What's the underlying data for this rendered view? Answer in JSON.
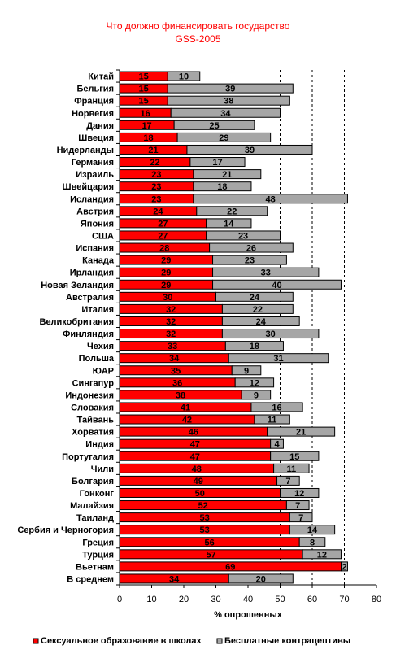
{
  "chart_data": {
    "type": "bar",
    "orientation": "horizontal",
    "stacked": true,
    "title": "Что должно финансировать государство",
    "subtitle": "GSS-2005",
    "xlabel": "% опрошенных",
    "xlim": [
      0,
      80
    ],
    "xticks": [
      "0",
      "10",
      "20",
      "30",
      "40",
      "50",
      "60",
      "70",
      "80"
    ],
    "grid": "vertical dashed lines at 50, 60, 70",
    "legend_position": "bottom",
    "categories": [
      "Китай",
      "Бельгия",
      "Франция",
      "Норвегия",
      "Дания",
      "Швеция",
      "Нидерланды",
      "Германия",
      "Израиль",
      "Швейцария",
      "Исландия",
      "Австрия",
      "Япония",
      "США",
      "Испания",
      "Канада",
      "Ирландия",
      "Новая Зеландия",
      "Австралия",
      "Италия",
      "Великобритания",
      "Финляндия",
      "Чехия",
      "Польша",
      "ЮАР",
      "Сингапур",
      "Индонезия",
      "Словакия",
      "Тайвань",
      "Хорватия",
      "Индия",
      "Португалия",
      "Чили",
      "Болгария",
      "Гонконг",
      "Малайзия",
      "Таиланд",
      "Сербия и Черногория",
      "Греция",
      "Турция",
      "Вьетнам",
      "В среднем"
    ],
    "series": [
      {
        "name": "Сексуальное образование в школах",
        "color": "#ff0000",
        "values": [
          15,
          15,
          15,
          16,
          17,
          18,
          21,
          22,
          23,
          23,
          23,
          24,
          27,
          27,
          28,
          29,
          29,
          29,
          30,
          32,
          32,
          32,
          33,
          34,
          35,
          36,
          38,
          41,
          42,
          46,
          47,
          47,
          48,
          49,
          50,
          52,
          53,
          53,
          56,
          57,
          69,
          34
        ]
      },
      {
        "name": "Бесплатные контрацептивы",
        "color": "#a6a6a6",
        "values": [
          10,
          39,
          38,
          34,
          25,
          29,
          39,
          17,
          21,
          18,
          48,
          22,
          14,
          23,
          26,
          23,
          33,
          40,
          24,
          22,
          24,
          30,
          18,
          31,
          9,
          12,
          9,
          16,
          11,
          21,
          4,
          15,
          11,
          7,
          12,
          7,
          7,
          14,
          8,
          12,
          2,
          20
        ]
      }
    ]
  }
}
